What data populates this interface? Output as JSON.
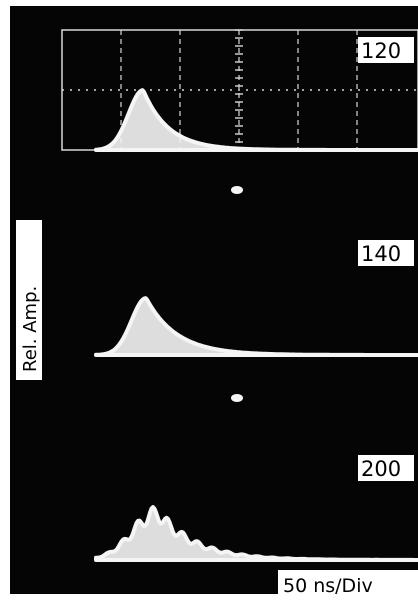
{
  "chart_data": {
    "type": "line",
    "ylabel": "Rel. Amp.",
    "xlabel": "50 ns/Div",
    "colors": {
      "screen": "#050505",
      "trace": "#f5f5f5",
      "graticule": "#d8d8d8",
      "frame": "#ffffff"
    },
    "graticule": {
      "divisions_visible": 6,
      "shown_in_panel": "120"
    },
    "panels": [
      {
        "label": "120",
        "shape": "smooth",
        "peak_div": 0.55,
        "rise_div": 0.35,
        "fall_div": 0.75,
        "relative_amplitude": 1.0
      },
      {
        "label": "140",
        "shape": "smooth",
        "peak_div": 0.6,
        "rise_div": 0.35,
        "fall_div": 0.9,
        "relative_amplitude": 0.95
      },
      {
        "label": "200",
        "shape": "rippled",
        "peak_div": 0.8,
        "rise_div": 0.6,
        "fall_div": 1.1,
        "relative_amplitude": 0.9,
        "ripple_count": 5
      }
    ]
  }
}
